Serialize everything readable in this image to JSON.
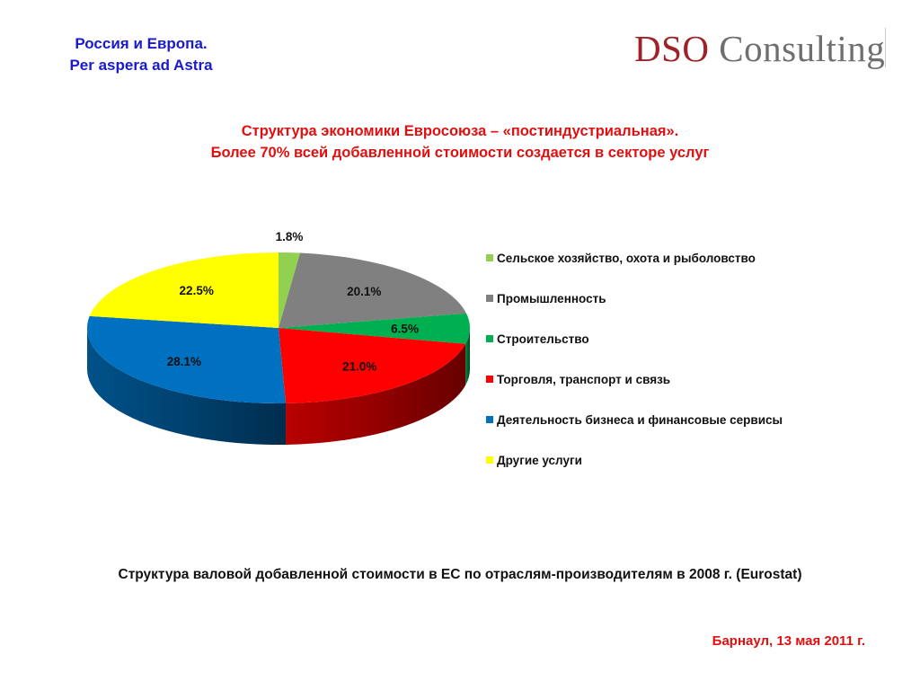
{
  "header": {
    "line1": "Россия и Европа.",
    "line2": "Per aspera ad Astra",
    "logo_part1": "DSO",
    "logo_part2": "Consulting"
  },
  "title": {
    "line1": "Структура экономики Евросоюза – «постиндустриальная».",
    "line2": "Более 70% всей добавленной стоимости создается в секторе услуг"
  },
  "chart_data": {
    "type": "pie",
    "style": "3d",
    "legend_position": "right",
    "slices": [
      {
        "label": "Сельское хозяйство, охота и рыболовство",
        "value": 1.8,
        "display": "1.8%",
        "color": "#92d050"
      },
      {
        "label": "Промышленность",
        "value": 20.1,
        "display": "20.1%",
        "color": "#808080"
      },
      {
        "label": "Строительство",
        "value": 6.5,
        "display": "6.5%",
        "color": "#00b050"
      },
      {
        "label": "Торговля, транспорт и связь",
        "value": 21.0,
        "display": "21.0%",
        "color": "#ff0000"
      },
      {
        "label": "Деятельность бизнеса и финансовые сервисы",
        "value": 28.1,
        "display": "28.1%",
        "color": "#0070c0"
      },
      {
        "label": "Другие услуги",
        "value": 22.5,
        "display": "22.5%",
        "color": "#ffff00"
      }
    ]
  },
  "caption": "Структура валовой добавленной стоимости в ЕС по отраслям-производителям в 2008 г. (Eurostat)",
  "footer": "Барнаул, 13 мая 2011 г."
}
